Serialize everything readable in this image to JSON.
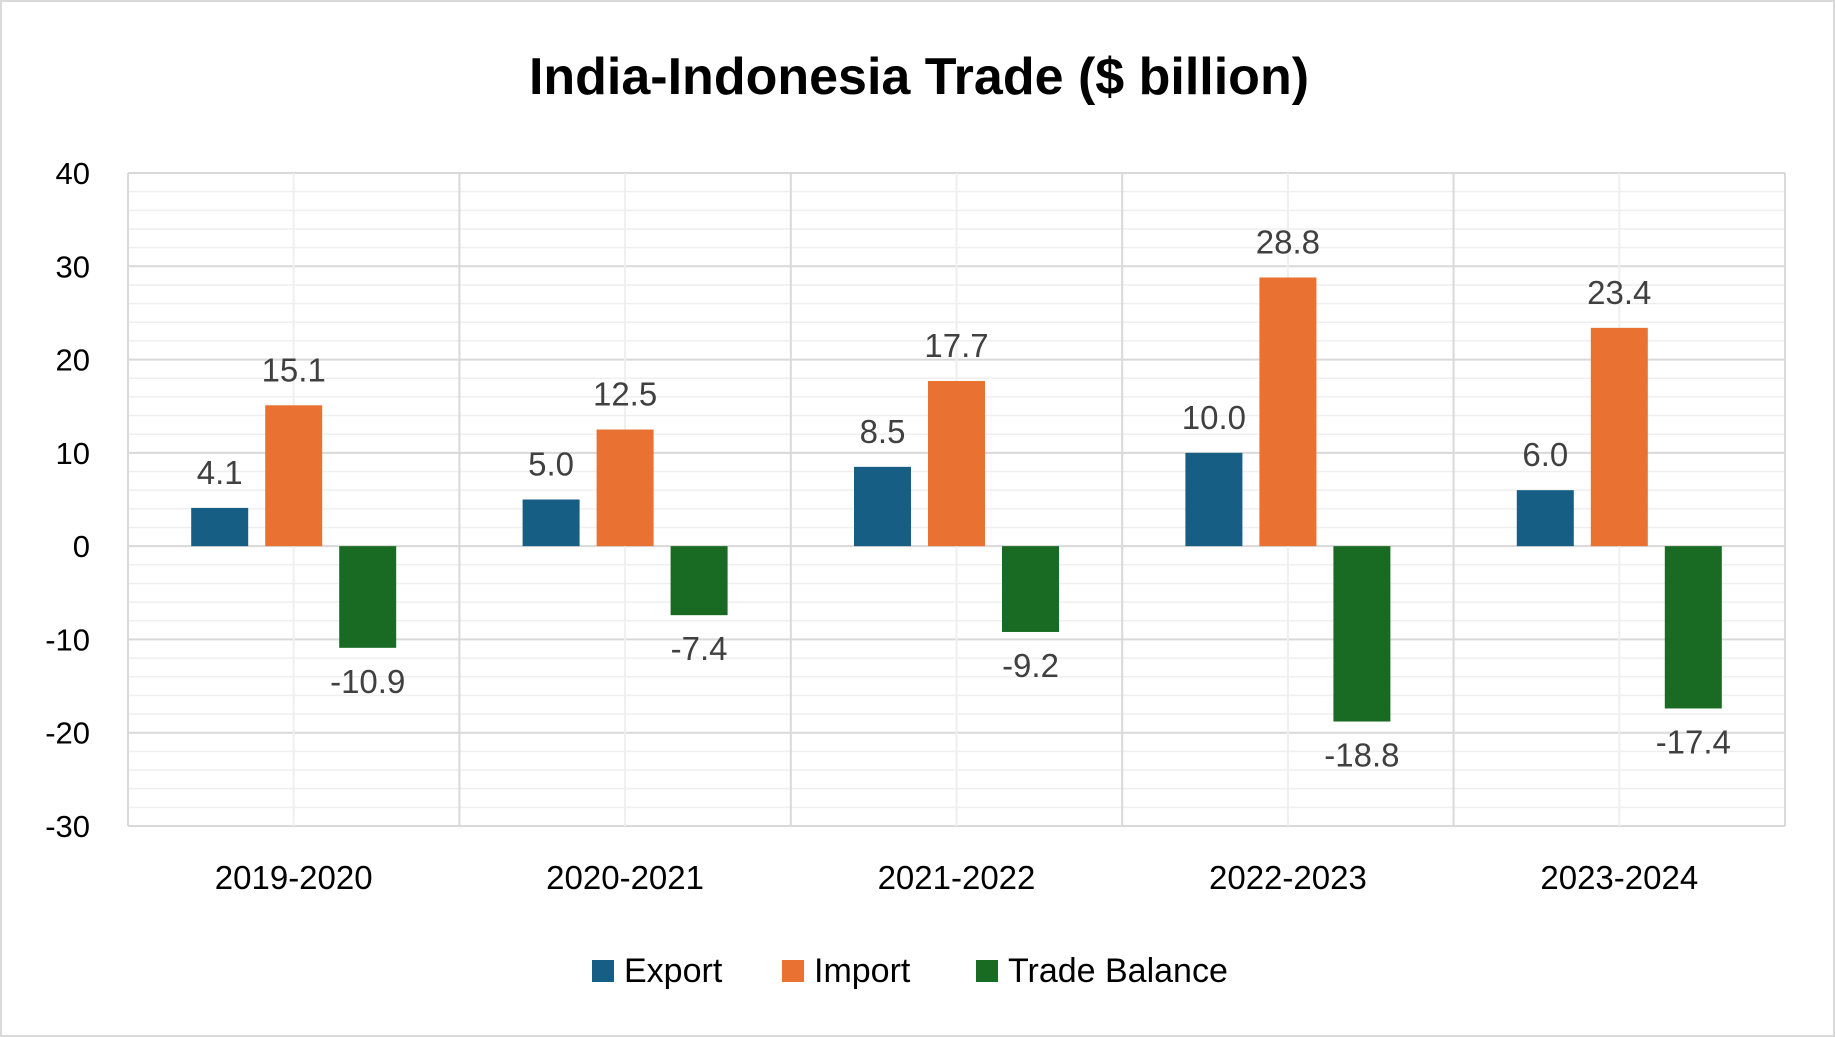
{
  "chart_data": {
    "type": "bar",
    "title": "India-Indonesia Trade ($ billion)",
    "categories": [
      "2019-2020",
      "2020-2021",
      "2021-2022",
      "2022-2023",
      "2023-2024"
    ],
    "series": [
      {
        "name": "Export",
        "values": [
          4.1,
          5.0,
          8.5,
          10.0,
          6.0
        ],
        "labels": [
          "4.1",
          "5.0",
          "8.5",
          "10.0",
          "6.0"
        ],
        "color": "#165e83"
      },
      {
        "name": "Import",
        "values": [
          15.1,
          12.5,
          17.7,
          28.8,
          23.4
        ],
        "labels": [
          "15.1",
          "12.5",
          "17.7",
          "28.8",
          "23.4"
        ],
        "color": "#e97132"
      },
      {
        "name": "Trade Balance",
        "values": [
          -10.9,
          -7.4,
          -9.2,
          -18.8,
          -17.4
        ],
        "labels": [
          "-10.9",
          "-7.4",
          "-9.2",
          "-18.8",
          "-17.4"
        ],
        "color": "#196b24"
      }
    ],
    "ylim": [
      -30,
      40
    ],
    "yticks": [
      40,
      30,
      20,
      10,
      0,
      -10,
      -20,
      -30
    ],
    "ytick_labels": [
      "40",
      "30",
      "20",
      "10",
      "0",
      "-10",
      "-20",
      "-30"
    ],
    "xlabel": "",
    "ylabel": "",
    "grid": true,
    "legend": "bottom"
  }
}
